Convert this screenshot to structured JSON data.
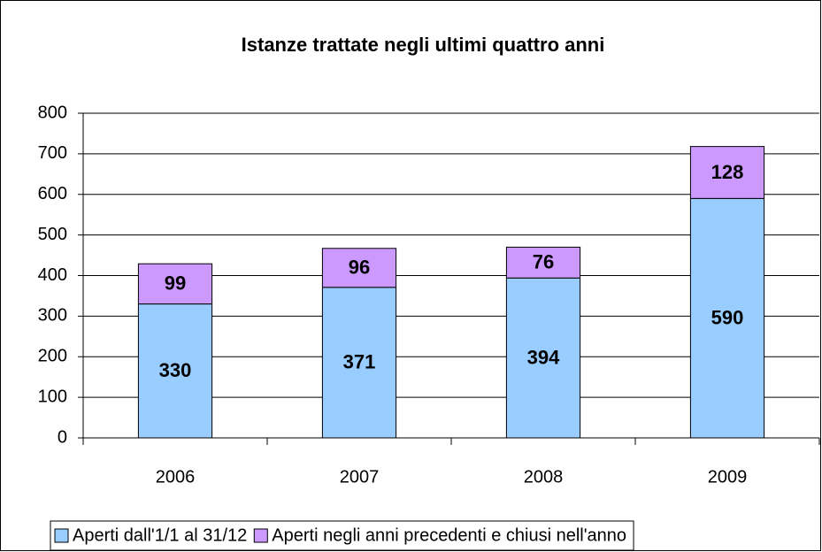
{
  "chart_data": {
    "type": "bar",
    "stacked": true,
    "title": "Istanze trattate negli ultimi quattro anni",
    "categories": [
      "2006",
      "2007",
      "2008",
      "2009"
    ],
    "series": [
      {
        "name": "Aperti dall'1/1 al 31/12",
        "color": "#99ccff",
        "values": [
          330,
          371,
          394,
          590
        ]
      },
      {
        "name": "Aperti negli anni precedenti e chiusi nell'anno",
        "color": "#cc99ff",
        "values": [
          99,
          96,
          76,
          128
        ]
      }
    ],
    "ylim": [
      0,
      800
    ],
    "yticks": [
      0,
      100,
      200,
      300,
      400,
      500,
      600,
      700,
      800
    ],
    "grid": true,
    "legend": "bottom"
  }
}
